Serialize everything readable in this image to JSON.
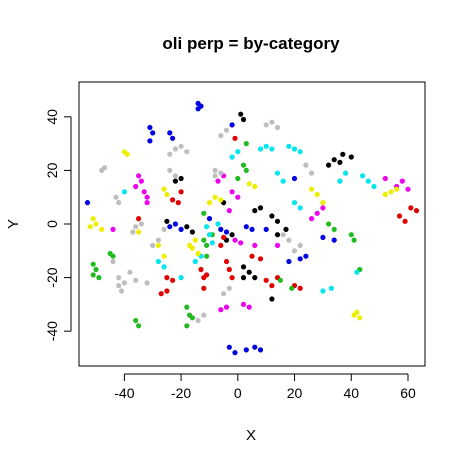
{
  "chart_data": {
    "type": "scatter",
    "title": "oli perp = by-category",
    "xlabel": "X",
    "ylabel": "Y",
    "xlim": [
      -56,
      66
    ],
    "ylim": [
      -53,
      53
    ],
    "xticks": [
      -40,
      -20,
      0,
      20,
      40,
      60
    ],
    "yticks": [
      -40,
      -20,
      0,
      20,
      40
    ],
    "grid": false,
    "colors": {
      "black": "#000000",
      "red": "#e00000",
      "green": "#22bb22",
      "blue": "#0000e0",
      "cyan": "#00e5ee",
      "magenta": "#ee00ee",
      "yellow": "#eeee00",
      "gray": "#bebebe"
    },
    "series": [
      {
        "color": "black",
        "points": [
          [
            1,
            41
          ],
          [
            2,
            39
          ],
          [
            34,
            24
          ],
          [
            37,
            26
          ],
          [
            40,
            25
          ],
          [
            32,
            22
          ],
          [
            36,
            23
          ],
          [
            -22,
            16
          ],
          [
            -20,
            17
          ],
          [
            6,
            5
          ],
          [
            8,
            6
          ],
          [
            12,
            3
          ],
          [
            14,
            1
          ],
          [
            -18,
            -1
          ],
          [
            -16,
            -3
          ],
          [
            -2,
            -4
          ],
          [
            -4,
            -6
          ],
          [
            2,
            -16
          ],
          [
            4,
            -18
          ],
          [
            6,
            -20
          ],
          [
            2,
            -20
          ],
          [
            12,
            -28
          ],
          [
            -25,
            1
          ],
          [
            17,
            -2
          ],
          [
            -5,
            8
          ],
          [
            14,
            -4
          ]
        ]
      },
      {
        "color": "red",
        "points": [
          [
            -23,
            9
          ],
          [
            -21,
            8
          ],
          [
            -20,
            12
          ],
          [
            -25,
            -25
          ],
          [
            -27,
            -26
          ],
          [
            -25,
            -20
          ],
          [
            -23,
            -21
          ],
          [
            -13,
            -17
          ],
          [
            -12,
            -20
          ],
          [
            -12,
            -24
          ],
          [
            -11,
            -19
          ],
          [
            -5,
            -5
          ],
          [
            -6,
            -8
          ],
          [
            -4,
            -14
          ],
          [
            -3,
            -17
          ],
          [
            -2,
            -20
          ],
          [
            5,
            -12
          ],
          [
            8,
            -13
          ],
          [
            10,
            -21
          ],
          [
            12,
            -23
          ],
          [
            14,
            -20
          ],
          [
            20,
            -23
          ],
          [
            22,
            -24
          ],
          [
            57,
            3
          ],
          [
            59,
            1
          ],
          [
            61,
            6
          ],
          [
            63,
            5
          ],
          [
            -35,
            2
          ],
          [
            -1,
            32
          ]
        ]
      },
      {
        "color": "green",
        "points": [
          [
            -51,
            -15
          ],
          [
            -50,
            -17
          ],
          [
            -51,
            -19
          ],
          [
            -49,
            -20
          ],
          [
            -45,
            -11
          ],
          [
            -44,
            -12
          ],
          [
            -36,
            -36
          ],
          [
            -35,
            -38
          ],
          [
            -18,
            -31
          ],
          [
            -17,
            -34
          ],
          [
            -18,
            -38
          ],
          [
            -16,
            -35
          ],
          [
            -12,
            -6
          ],
          [
            -11,
            -8
          ],
          [
            -11,
            -12
          ],
          [
            2,
            22
          ],
          [
            3,
            20
          ],
          [
            0,
            17
          ],
          [
            -9,
            -4
          ],
          [
            -12,
            4
          ],
          [
            32,
            0
          ],
          [
            34,
            -2
          ],
          [
            40,
            -4
          ],
          [
            41,
            -6
          ],
          [
            15,
            -21
          ],
          [
            19,
            -24
          ],
          [
            43,
            -17
          ],
          [
            3,
            30
          ]
        ]
      },
      {
        "color": "blue",
        "points": [
          [
            -53,
            8
          ],
          [
            -31,
            36
          ],
          [
            -30,
            34
          ],
          [
            -31,
            31
          ],
          [
            -24,
            34
          ],
          [
            -23,
            32
          ],
          [
            -14,
            45
          ],
          [
            -13,
            44
          ],
          [
            -14,
            43
          ],
          [
            -24,
            -1
          ],
          [
            -22,
            0
          ],
          [
            -20,
            -2
          ],
          [
            -10,
            2
          ],
          [
            -6,
            -2
          ],
          [
            -4,
            -3
          ],
          [
            3,
            -1
          ],
          [
            5,
            -2
          ],
          [
            10,
            -2
          ],
          [
            20,
            17
          ],
          [
            18,
            -14
          ],
          [
            22,
            -13
          ],
          [
            24,
            -12
          ],
          [
            30,
            -5
          ],
          [
            34,
            -6
          ],
          [
            -3,
            -46
          ],
          [
            -1,
            -48
          ],
          [
            3,
            -47
          ],
          [
            6,
            -46
          ],
          [
            8,
            -47
          ],
          [
            -2,
            37
          ]
        ]
      },
      {
        "color": "cyan",
        "points": [
          [
            -11,
            -1
          ],
          [
            -10,
            -4
          ],
          [
            -9,
            -7
          ],
          [
            -13,
            -12
          ],
          [
            -15,
            -14
          ],
          [
            -20,
            -20
          ],
          [
            -2,
            25
          ],
          [
            0,
            27
          ],
          [
            8,
            28
          ],
          [
            10,
            29
          ],
          [
            12,
            28
          ],
          [
            18,
            29
          ],
          [
            20,
            28
          ],
          [
            22,
            27
          ],
          [
            14,
            19
          ],
          [
            16,
            16
          ],
          [
            20,
            8
          ],
          [
            22,
            6
          ],
          [
            36,
            16
          ],
          [
            38,
            19
          ],
          [
            46,
            16
          ],
          [
            44,
            18
          ],
          [
            48,
            14
          ],
          [
            -28,
            -14
          ],
          [
            -26,
            -16
          ],
          [
            30,
            -25
          ],
          [
            33,
            -24
          ],
          [
            42,
            -18
          ],
          [
            -40,
            12
          ],
          [
            -7,
            0
          ]
        ]
      },
      {
        "color": "magenta",
        "points": [
          [
            -35,
            18
          ],
          [
            -34,
            16
          ],
          [
            -36,
            14
          ],
          [
            -33,
            12
          ],
          [
            -32,
            10
          ],
          [
            -32,
            8
          ],
          [
            -7,
            16
          ],
          [
            -5,
            18
          ],
          [
            -2,
            12
          ],
          [
            0,
            10
          ],
          [
            -3,
            5
          ],
          [
            -1,
            -6
          ],
          [
            1,
            -7
          ],
          [
            6,
            -8
          ],
          [
            14,
            -8
          ],
          [
            26,
            2
          ],
          [
            28,
            4
          ],
          [
            30,
            6
          ],
          [
            52,
            17
          ],
          [
            56,
            14
          ],
          [
            58,
            16
          ],
          [
            60,
            13
          ],
          [
            -6,
            -32
          ],
          [
            -4,
            -31
          ],
          [
            2,
            -30
          ],
          [
            4,
            -31
          ],
          [
            -44,
            -2
          ]
        ]
      },
      {
        "color": "yellow",
        "points": [
          [
            -52,
            -1
          ],
          [
            -50,
            0
          ],
          [
            -51,
            2
          ],
          [
            -48,
            -2
          ],
          [
            -40,
            27
          ],
          [
            -39,
            26
          ],
          [
            -26,
            13
          ],
          [
            -25,
            11
          ],
          [
            -17,
            -8
          ],
          [
            -16,
            -9
          ],
          [
            -14,
            -11
          ],
          [
            -15,
            -6
          ],
          [
            -8,
            10
          ],
          [
            -6,
            9
          ],
          [
            -10,
            8
          ],
          [
            4,
            15
          ],
          [
            6,
            14
          ],
          [
            26,
            13
          ],
          [
            28,
            11
          ],
          [
            30,
            8
          ],
          [
            52,
            11
          ],
          [
            54,
            12
          ],
          [
            56,
            13
          ],
          [
            41,
            -34
          ],
          [
            43,
            -35
          ],
          [
            42,
            -33
          ],
          [
            -28,
            -8
          ],
          [
            -26,
            -12
          ],
          [
            -35,
            -3
          ]
        ]
      },
      {
        "color": "gray",
        "points": [
          [
            -48,
            20
          ],
          [
            -47,
            21
          ],
          [
            -43,
            10
          ],
          [
            -42,
            8
          ],
          [
            -36,
            -1
          ],
          [
            -34,
            0
          ],
          [
            -37,
            -3
          ],
          [
            -38,
            -18
          ],
          [
            -36,
            -21
          ],
          [
            -32,
            -22
          ],
          [
            -42,
            -23
          ],
          [
            -41,
            -25
          ],
          [
            -42,
            -20
          ],
          [
            -40,
            -22
          ],
          [
            -22,
            28
          ],
          [
            -20,
            29
          ],
          [
            -18,
            27
          ],
          [
            -24,
            26
          ],
          [
            -22,
            18
          ],
          [
            -24,
            20
          ],
          [
            -8,
            20
          ],
          [
            -6,
            19
          ],
          [
            -8,
            18
          ],
          [
            -4,
            35
          ],
          [
            -6,
            33
          ],
          [
            10,
            37
          ],
          [
            12,
            38
          ],
          [
            14,
            36
          ],
          [
            24,
            22
          ],
          [
            26,
            19
          ],
          [
            -28,
            -6
          ],
          [
            -30,
            -8
          ],
          [
            -26,
            -2
          ],
          [
            -12,
            -34
          ],
          [
            -14,
            -36
          ],
          [
            16,
            -4
          ],
          [
            18,
            -6
          ],
          [
            -3,
            -24
          ],
          [
            -5,
            -26
          ],
          [
            20,
            -10
          ],
          [
            22,
            -8
          ],
          [
            -44,
            -14
          ]
        ]
      }
    ]
  }
}
